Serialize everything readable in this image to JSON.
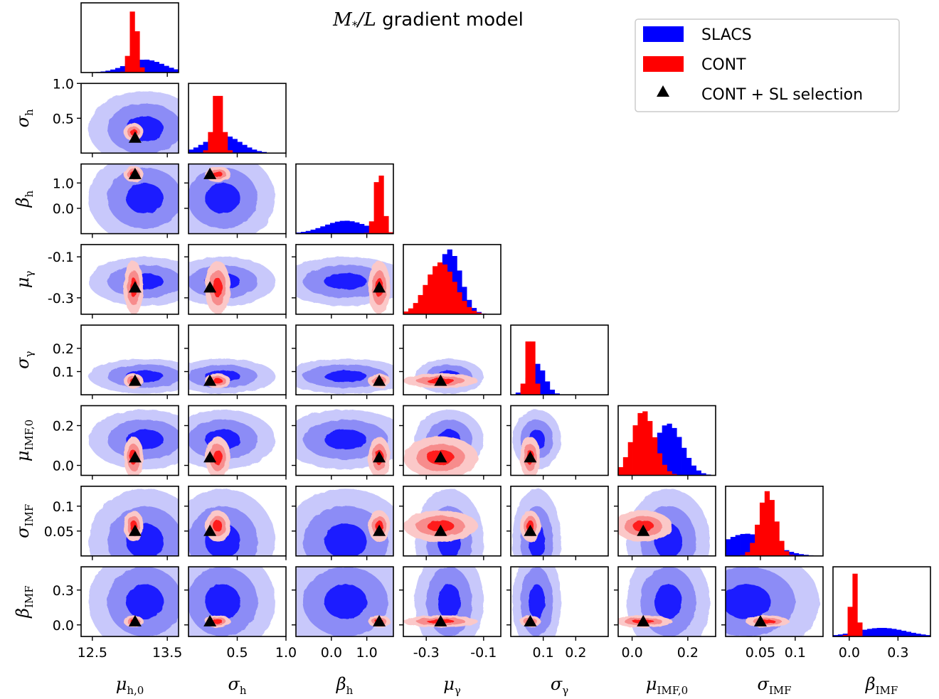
{
  "chart_data": {
    "type": "corner",
    "title": "M*/L gradient model",
    "title_parts": {
      "main": "M",
      "sub": "*",
      "rest": "/L",
      "suffix": " gradient model"
    },
    "legend": {
      "placement": "top-right",
      "entries": [
        {
          "label": "SLACS",
          "color": "#0000ff",
          "marker": "patch"
        },
        {
          "label": "CONT",
          "color": "#ff0000",
          "marker": "patch"
        },
        {
          "label": "CONT + SL selection",
          "color": "#000000",
          "marker": "triangle"
        }
      ]
    },
    "colors": {
      "slacs_levels": [
        "#c8c8fb",
        "#8c8cf6",
        "#1a1aff"
      ],
      "cont_levels": [
        "#fbc8c8",
        "#f78c8c",
        "#ff1a1a"
      ],
      "slacs_hist": "#0000ff",
      "cont_hist": "#ff0000"
    },
    "parameters": [
      {
        "label": "μh,0",
        "sym": "μ",
        "sub": "h,0",
        "range": [
          12.35,
          13.65
        ],
        "ticks": [
          12.5,
          13.5
        ],
        "tick_labels": [
          "12.5",
          "13.5"
        ],
        "truth": 13.07,
        "slacs": {
          "mean": 13.2,
          "sd": 0.25
        },
        "cont": {
          "mean": 13.05,
          "sd": 0.05
        }
      },
      {
        "label": "σh",
        "sym": "σ",
        "sub": "h",
        "range": [
          0.0,
          1.0
        ],
        "ticks": [
          0.5,
          1.0
        ],
        "tick_labels": [
          "0.5",
          "1.0"
        ],
        "ytick_labels": [
          "0.5",
          "1.0"
        ],
        "truth": 0.22,
        "slacs": {
          "mean": 0.35,
          "sd": 0.18
        },
        "cont": {
          "mean": 0.3,
          "sd": 0.05
        }
      },
      {
        "label": "βh",
        "sym": "β",
        "sub": "h",
        "range": [
          -1.0,
          1.75
        ],
        "ticks": [
          0.0,
          1.0
        ],
        "tick_labels": [
          "0.0",
          "1.0"
        ],
        "truth": 1.35,
        "slacs": {
          "mean": 0.4,
          "sd": 0.6
        },
        "cont": {
          "mean": 1.35,
          "sd": 0.12
        }
      },
      {
        "label": "μγ",
        "sym": "μ",
        "sub": "γ",
        "range": [
          -0.38,
          -0.04
        ],
        "ticks": [
          -0.3,
          -0.1
        ],
        "tick_labels": [
          "-0.3",
          "-0.1"
        ],
        "truth": -0.25,
        "slacs": {
          "mean": -0.22,
          "sd": 0.04
        },
        "cont": {
          "mean": -0.25,
          "sd": 0.05
        }
      },
      {
        "label": "σγ",
        "sym": "σ",
        "sub": "γ",
        "range": [
          0.0,
          0.3
        ],
        "ticks": [
          0.1,
          0.2
        ],
        "tick_labels": [
          "0.1",
          "0.2"
        ],
        "ytick_labels": [
          "0.1",
          "0.2"
        ],
        "truth": 0.06,
        "slacs": {
          "mean": 0.08,
          "sd": 0.025
        },
        "cont": {
          "mean": 0.06,
          "sd": 0.012
        }
      },
      {
        "label": "μIMF,0",
        "sym": "μ",
        "sub": "IMF,0",
        "range": [
          -0.05,
          0.3
        ],
        "ticks": [
          0.0,
          0.2
        ],
        "tick_labels": [
          "0.0",
          "0.2"
        ],
        "truth": 0.04,
        "slacs": {
          "mean": 0.13,
          "sd": 0.05
        },
        "cont": {
          "mean": 0.04,
          "sd": 0.04
        }
      },
      {
        "label": "σIMF",
        "sym": "σ",
        "sub": "IMF",
        "range": [
          0.0,
          0.14
        ],
        "ticks": [
          0.05,
          0.1
        ],
        "tick_labels": [
          "0.05",
          "0.1"
        ],
        "ytick_labels": [
          "0.05",
          "0.1"
        ],
        "truth": 0.05,
        "slacs": {
          "mean": 0.03,
          "sd": 0.035
        },
        "cont": {
          "mean": 0.06,
          "sd": 0.012
        }
      },
      {
        "label": "βIMF",
        "sym": "β",
        "sub": "IMF",
        "range": [
          -0.1,
          0.5
        ],
        "ticks": [
          0.0,
          0.3
        ],
        "tick_labels": [
          "0.0",
          "0.3"
        ],
        "truth": 0.03,
        "slacs": {
          "mean": 0.2,
          "sd": 0.15
        },
        "cont": {
          "mean": 0.03,
          "sd": 0.02
        }
      }
    ]
  }
}
